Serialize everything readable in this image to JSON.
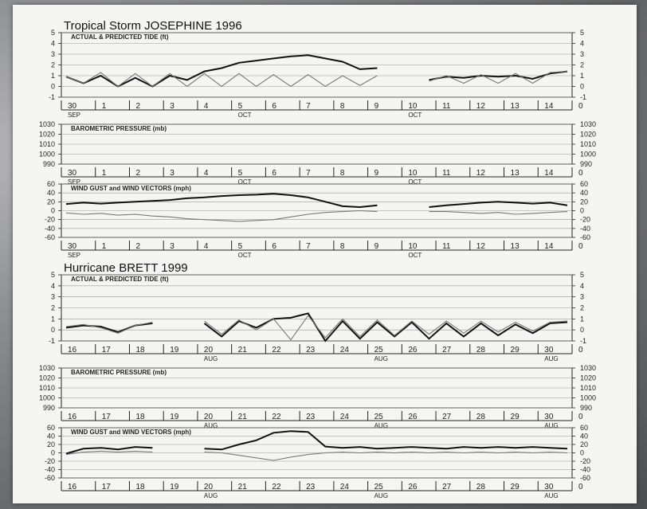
{
  "colors": {
    "background": "#6f7073",
    "paper": "#f5f5f3",
    "ink": "#111111",
    "predicted": "#777777"
  },
  "chart_data": [
    {
      "type": "line",
      "storm_title": "Tropical Storm JOSEPHINE 1996",
      "title": "ACTUAL & PREDICTED TIDE (ft)",
      "ylim": [
        -1,
        5
      ],
      "yticks": [
        -1,
        0,
        1,
        2,
        3,
        4,
        5
      ],
      "x": [
        30,
        30.5,
        1,
        1.5,
        2,
        2.5,
        3,
        3.5,
        4,
        4.5,
        5,
        5.5,
        6,
        6.5,
        7,
        7.5,
        8,
        8.5,
        9,
        9.5,
        10,
        10.5,
        11,
        11.5,
        12,
        12.5,
        13,
        13.5,
        14,
        14.5
      ],
      "x_labels": [
        "30",
        "1",
        "2",
        "3",
        "4",
        "5",
        "6",
        "7",
        "8",
        "9",
        "10",
        "11",
        "12",
        "13",
        "14",
        "0"
      ],
      "month_labels": [
        {
          "at": "30",
          "text": "SEP"
        },
        {
          "at": "5",
          "text": "OCT"
        },
        {
          "at": "10",
          "text": "OCT"
        }
      ],
      "series": [
        {
          "values": [
            0.9,
            0.3,
            1.0,
            0.0,
            0.8,
            0.0,
            1.0,
            0.6,
            1.4,
            1.7,
            2.2,
            2.4,
            2.6,
            2.8,
            2.9,
            2.6,
            2.3,
            1.6,
            1.7,
            null,
            null,
            0.6,
            0.9,
            0.8,
            1.0,
            0.9,
            1.0,
            0.7,
            1.2,
            1.4
          ]
        },
        {
          "values": [
            0.9,
            0.3,
            1.3,
            0.0,
            1.2,
            0.0,
            1.2,
            0.0,
            1.2,
            0.0,
            1.2,
            0.0,
            1.1,
            0.0,
            1.1,
            0.0,
            1.0,
            0.1,
            1.0,
            null,
            null,
            0.5,
            1.0,
            0.3,
            1.1,
            0.3,
            1.2,
            0.3,
            1.3,
            1.4
          ]
        }
      ]
    },
    {
      "type": "line",
      "title": "BAROMETRIC PRESSURE (mb)",
      "ylim": [
        990,
        1030
      ],
      "yticks": [
        990,
        1000,
        1010,
        1020,
        1030
      ],
      "x_labels": [
        "30",
        "1",
        "2",
        "3",
        "4",
        "5",
        "6",
        "7",
        "8",
        "9",
        "10",
        "11",
        "12",
        "13",
        "14",
        "0"
      ],
      "month_labels": [
        {
          "at": "30",
          "text": "SEP"
        },
        {
          "at": "5",
          "text": "OCT"
        },
        {
          "at": "10",
          "text": "OCT"
        }
      ],
      "series": []
    },
    {
      "type": "line",
      "title": "WIND GUST and WIND VECTORS (mph)",
      "ylim": [
        -60,
        60
      ],
      "yticks": [
        -60,
        -40,
        -20,
        0,
        20,
        40,
        60
      ],
      "x": [
        30,
        30.5,
        1,
        1.5,
        2,
        2.5,
        3,
        3.5,
        4,
        4.5,
        5,
        5.5,
        6,
        6.5,
        7,
        7.5,
        8,
        8.5,
        9,
        9.5,
        10,
        10.5,
        11,
        11.5,
        12,
        12.5,
        13,
        13.5,
        14,
        14.5
      ],
      "x_labels": [
        "30",
        "1",
        "2",
        "3",
        "4",
        "5",
        "6",
        "7",
        "8",
        "9",
        "10",
        "11",
        "12",
        "13",
        "14",
        "0"
      ],
      "month_labels": [
        {
          "at": "30",
          "text": "SEP"
        },
        {
          "at": "5",
          "text": "OCT"
        },
        {
          "at": "10",
          "text": "OCT"
        }
      ],
      "series": [
        {
          "values": [
            15,
            18,
            16,
            18,
            20,
            22,
            24,
            28,
            30,
            33,
            35,
            36,
            38,
            35,
            30,
            20,
            10,
            8,
            12,
            null,
            null,
            8,
            12,
            15,
            18,
            20,
            18,
            16,
            18,
            12
          ]
        },
        {
          "values": [
            -5,
            -8,
            -6,
            -10,
            -8,
            -12,
            -14,
            -18,
            -20,
            -22,
            -24,
            -22,
            -20,
            -14,
            -8,
            -4,
            -2,
            0,
            -2,
            null,
            null,
            -2,
            -2,
            -4,
            -6,
            -4,
            -8,
            -6,
            -4,
            -2
          ]
        }
      ]
    },
    {
      "type": "line",
      "storm_title": "Hurricane BRETT 1999",
      "title": "ACTUAL & PREDICTED TIDE (ft)",
      "ylim": [
        -1,
        5
      ],
      "yticks": [
        -1,
        0,
        1,
        2,
        3,
        4,
        5
      ],
      "x": [
        16,
        16.5,
        17,
        17.5,
        18,
        18.5,
        19,
        19.5,
        20,
        20.5,
        21,
        21.5,
        22,
        22.5,
        23,
        23.5,
        24,
        24.5,
        25,
        25.5,
        26,
        26.5,
        27,
        27.5,
        28,
        28.5,
        29,
        29.5,
        30,
        30.5
      ],
      "x_labels": [
        "16",
        "17",
        "18",
        "19",
        "20",
        "21",
        "22",
        "23",
        "24",
        "25",
        "26",
        "27",
        "28",
        "29",
        "30",
        "0"
      ],
      "month_labels": [
        {
          "at": "20",
          "text": "AUG"
        },
        {
          "at": "25",
          "text": "AUG"
        },
        {
          "at": "30",
          "text": "AUG"
        }
      ],
      "series": [
        {
          "values": [
            0.2,
            0.4,
            0.3,
            -0.2,
            0.4,
            0.6,
            null,
            null,
            0.6,
            -0.6,
            0.8,
            0.2,
            1.0,
            1.1,
            1.5,
            -1.0,
            0.8,
            -0.8,
            0.7,
            -0.6,
            0.7,
            -0.8,
            0.6,
            -0.6,
            0.6,
            -0.5,
            0.5,
            -0.3,
            0.6,
            0.7
          ]
        },
        {
          "values": [
            0.3,
            0.5,
            0.2,
            -0.3,
            0.4,
            0.7,
            null,
            null,
            0.8,
            -0.4,
            0.9,
            0.0,
            1.0,
            -0.9,
            1.3,
            -0.7,
            1.0,
            -0.6,
            0.9,
            -0.5,
            0.8,
            -0.4,
            0.8,
            -0.3,
            0.8,
            -0.2,
            0.7,
            -0.1,
            0.7,
            0.8
          ]
        }
      ]
    },
    {
      "type": "line",
      "title": "BAROMETRIC PRESSURE (mb)",
      "ylim": [
        990,
        1030
      ],
      "yticks": [
        990,
        1000,
        1010,
        1020,
        1030
      ],
      "x_labels": [
        "16",
        "17",
        "18",
        "19",
        "20",
        "21",
        "22",
        "23",
        "24",
        "25",
        "26",
        "27",
        "28",
        "29",
        "30",
        "0"
      ],
      "month_labels": [
        {
          "at": "20",
          "text": "AUG"
        },
        {
          "at": "25",
          "text": "AUG"
        },
        {
          "at": "30",
          "text": "AUG"
        }
      ],
      "series": []
    },
    {
      "type": "line",
      "title": "WIND GUST and WIND VECTORS (mph)",
      "ylim": [
        -60,
        60
      ],
      "yticks": [
        -60,
        -40,
        -20,
        0,
        20,
        40,
        60
      ],
      "x": [
        16,
        16.5,
        17,
        17.5,
        18,
        18.5,
        19,
        19.5,
        20,
        20.5,
        21,
        21.5,
        22,
        22.5,
        23,
        23.5,
        24,
        24.5,
        25,
        25.5,
        26,
        26.5,
        27,
        27.5,
        28,
        28.5,
        29,
        29.5,
        30,
        30.5
      ],
      "x_labels": [
        "16",
        "17",
        "18",
        "19",
        "20",
        "21",
        "22",
        "23",
        "24",
        "25",
        "26",
        "27",
        "28",
        "29",
        "30",
        "0"
      ],
      "month_labels": [
        {
          "at": "20",
          "text": "AUG"
        },
        {
          "at": "25",
          "text": "AUG"
        },
        {
          "at": "30",
          "text": "AUG"
        }
      ],
      "series": [
        {
          "values": [
            -2,
            10,
            12,
            8,
            14,
            12,
            null,
            null,
            10,
            8,
            20,
            30,
            48,
            52,
            50,
            15,
            12,
            14,
            10,
            12,
            14,
            12,
            10,
            14,
            12,
            14,
            12,
            14,
            12,
            10
          ]
        },
        {
          "values": [
            -4,
            2,
            4,
            2,
            4,
            2,
            null,
            null,
            2,
            0,
            -6,
            -12,
            -18,
            -10,
            -4,
            0,
            2,
            0,
            2,
            0,
            2,
            0,
            2,
            0,
            2,
            0,
            2,
            0,
            2,
            0
          ]
        }
      ]
    }
  ]
}
